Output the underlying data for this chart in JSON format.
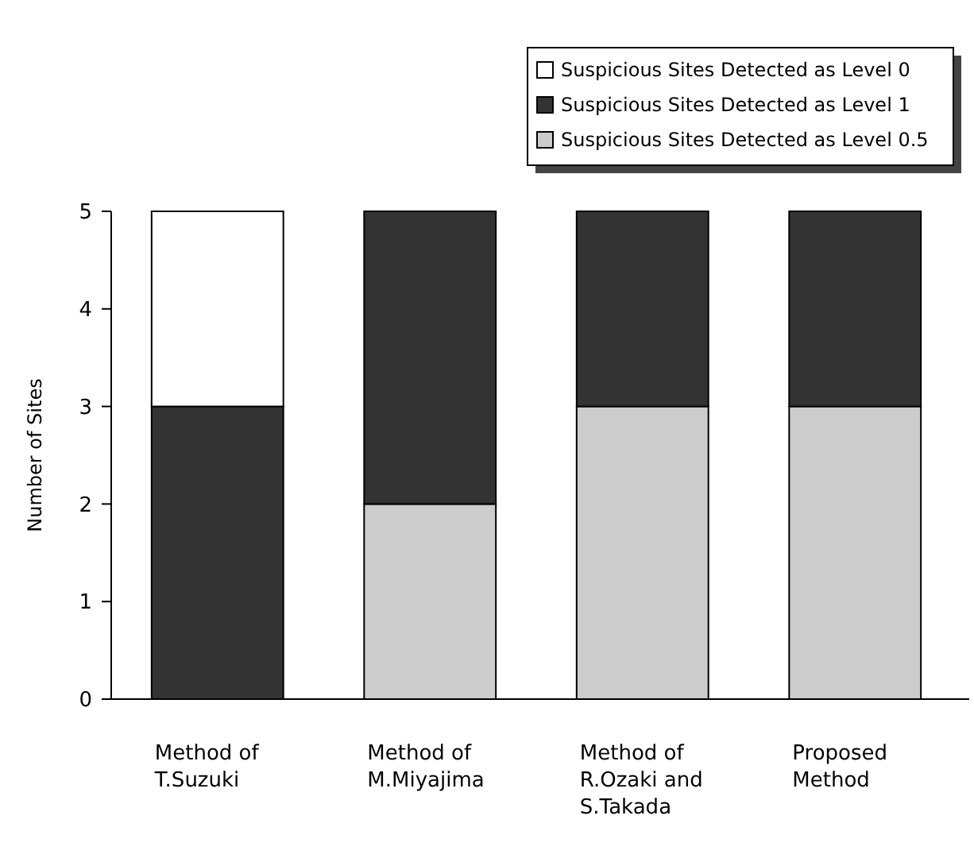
{
  "chart_data": {
    "type": "bar",
    "ylabel": "Number of Sites",
    "categories": [
      "Method of T.Suzuki",
      "Method of M.Miyajima",
      "Method of R.Ozaki and S.Takada",
      "Proposed Method"
    ],
    "stacked": true,
    "ylim": [
      0,
      5
    ],
    "yticks": [
      0,
      1,
      2,
      3,
      4,
      5
    ],
    "grid": false,
    "legend": "top right",
    "series": [
      {
        "name": "Suspicious Sites Detected as Level 0.5",
        "color": "#cccccc",
        "values": [
          0,
          2,
          3,
          3
        ]
      },
      {
        "name": "Suspicious Sites Detected as Level 1",
        "color": "#333333",
        "values": [
          3,
          3,
          2,
          2
        ]
      },
      {
        "name": "Suspicious Sites Detected as Level 0",
        "color": "#ffffff",
        "values": [
          2,
          0,
          0,
          0
        ]
      }
    ]
  }
}
